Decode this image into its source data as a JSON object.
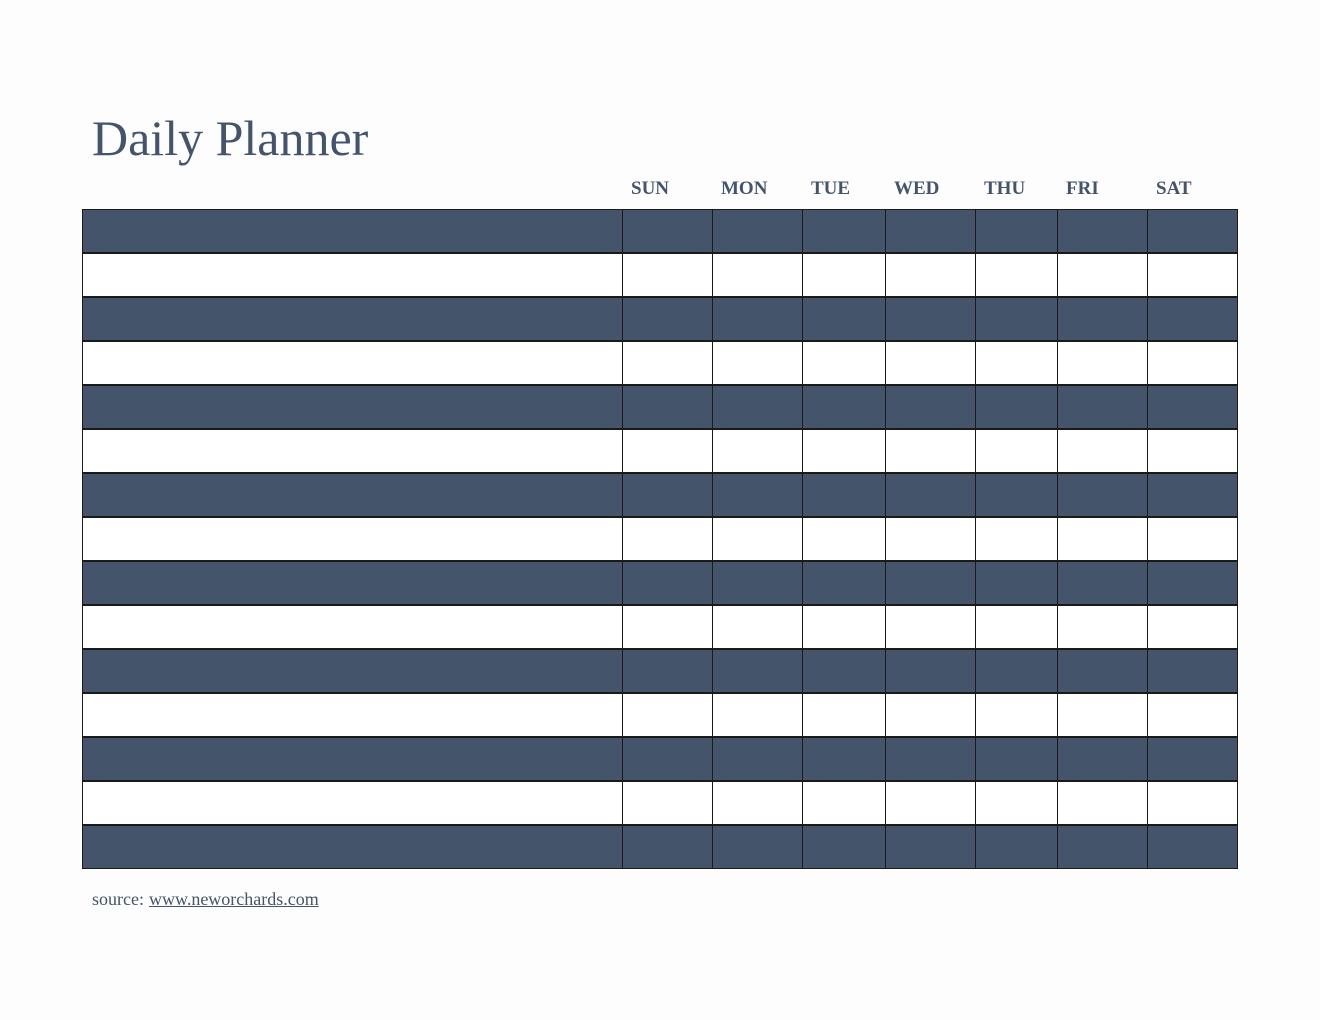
{
  "header": {
    "title": "Daily Planner"
  },
  "days": [
    "SUN",
    "MON",
    "TUE",
    "WED",
    "THU",
    "FRI",
    "SAT"
  ],
  "footer": {
    "source_label": "source:",
    "link": "www.neworchards.com"
  }
}
